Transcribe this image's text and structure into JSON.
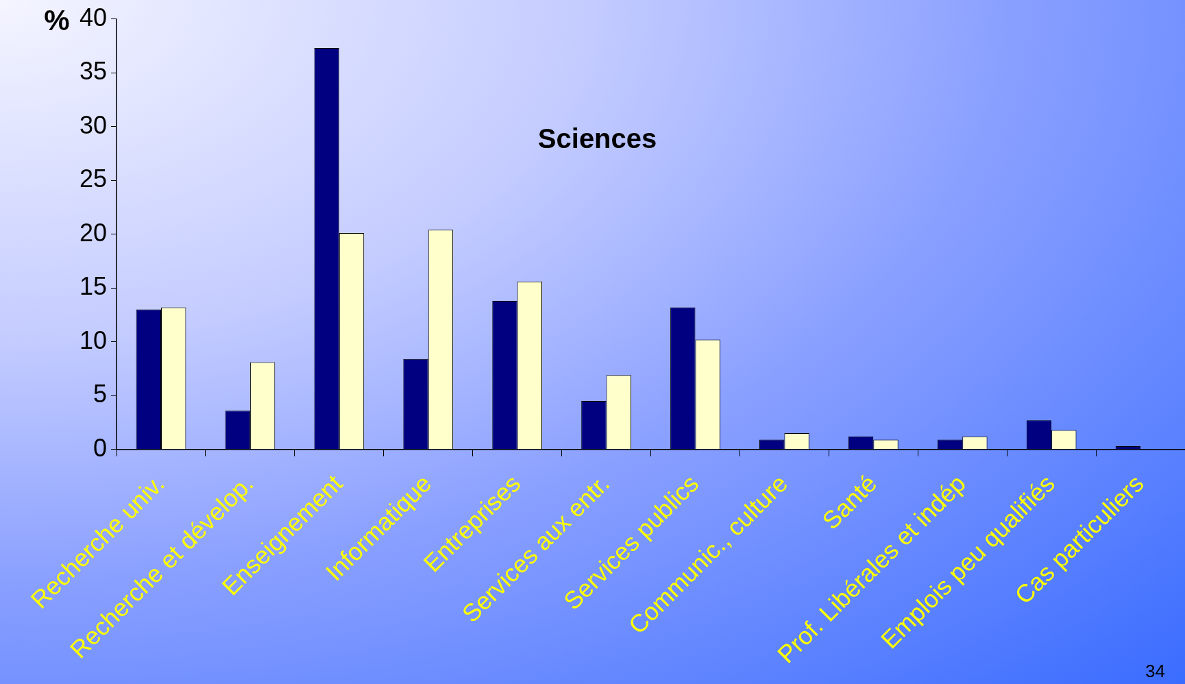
{
  "chart_data": {
    "type": "bar",
    "title": "Sciences",
    "ylabel": "%",
    "categories": [
      "Recherche univ.",
      "Recherche et dévelop.",
      "Enseignement",
      "Informatique",
      "Entreprises",
      "Services aux entr.",
      "Services publics",
      "Communic., culture",
      "Santé",
      "Prof. Libérales et indép",
      "Emplois peu qualifiés",
      "Cas particuliers"
    ],
    "series": [
      {
        "color": "#000080",
        "values": [
          13,
          3.6,
          37.3,
          8.4,
          13.8,
          4.5,
          13.2,
          0.9,
          1.2,
          0.9,
          2.7,
          0.3
        ]
      },
      {
        "color": "#ffffcc",
        "values": [
          13.2,
          8.1,
          20.1,
          20.4,
          15.6,
          6.9,
          10.2,
          1.5,
          0.9,
          1.2,
          1.8,
          null
        ]
      }
    ],
    "ylim": [
      0,
      40
    ],
    "yticks": [
      0,
      5,
      10,
      15,
      20,
      25,
      30,
      35,
      40
    ],
    "grid": false,
    "legend": false,
    "annotations": [
      "34"
    ]
  }
}
